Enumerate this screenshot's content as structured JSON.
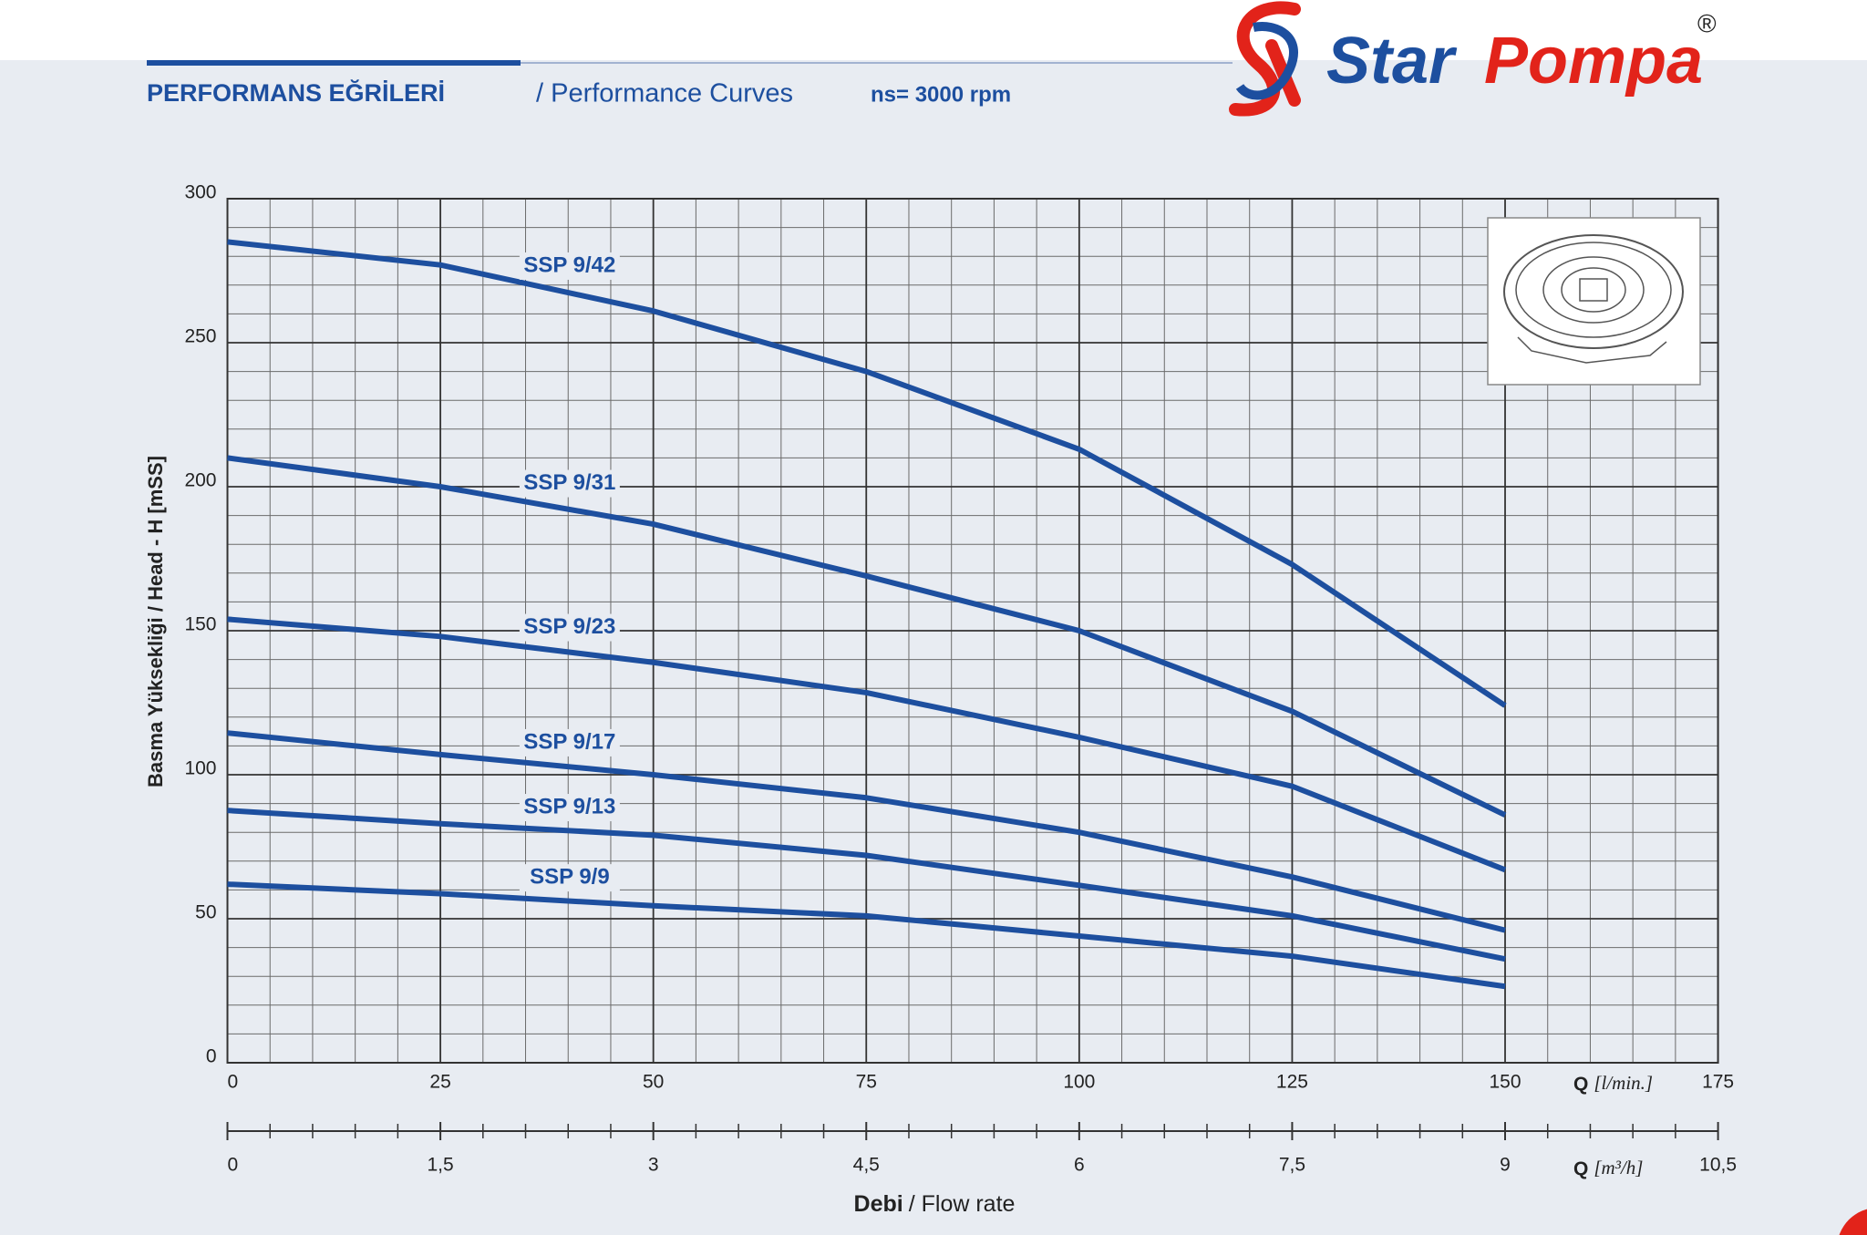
{
  "brand": {
    "word1": "Star",
    "word2": "Pompa",
    "mark": "®"
  },
  "chart_data": {
    "type": "line",
    "title": "PERFORMANS EĞRİLERİ",
    "subtitle": "/ Performance Curves",
    "annotation": "ns= 3000 rpm",
    "x": [
      0,
      25,
      50,
      75,
      100,
      125,
      150
    ],
    "xlim": [
      0,
      175
    ],
    "xticks": [
      0,
      25,
      50,
      75,
      100,
      125,
      150,
      175
    ],
    "x_label_symbol": "Q",
    "x_label_unit": "[l/min.]",
    "x2lim": [
      0,
      10.5
    ],
    "x2ticks": [
      0,
      {
        "value": 1.5,
        "label": "1,5"
      },
      3,
      {
        "value": 4.5,
        "label": "4,5"
      },
      6,
      {
        "value": 7.5,
        "label": "7,5"
      },
      9,
      {
        "value": 10.5,
        "label": "10,5"
      }
    ],
    "x2_label_symbol": "Q",
    "x2_label_unit": "[m³/h]",
    "xlabel_bold": "Debi",
    "xlabel_rest": "/ Flow rate",
    "ylabel": "Basma Yüksekliği / Head - H [mSS]",
    "ylim": [
      0,
      300
    ],
    "yticks": [
      0,
      50,
      100,
      150,
      200,
      250,
      300
    ],
    "grid": true,
    "series": [
      {
        "name": "SSP 9/42",
        "color": "#1d4f9f",
        "values": [
          285,
          277,
          261,
          240,
          213,
          173,
          124
        ]
      },
      {
        "name": "SSP 9/31",
        "color": "#1d4f9f",
        "values": [
          210,
          200,
          187,
          169,
          150,
          122,
          86
        ]
      },
      {
        "name": "SSP 9/23",
        "color": "#1d4f9f",
        "values": [
          154,
          148,
          139,
          128.5,
          113,
          96,
          67
        ]
      },
      {
        "name": "SSP 9/17",
        "color": "#1d4f9f",
        "values": [
          114.5,
          107,
          100,
          92,
          80,
          64.5,
          46
        ]
      },
      {
        "name": "SSP 9/13",
        "color": "#1d4f9f",
        "values": [
          87.6,
          83,
          79,
          72,
          61.6,
          51,
          36
        ]
      },
      {
        "name": "SSP 9/9",
        "color": "#1d4f9f",
        "values": [
          62,
          58.7,
          54.5,
          51,
          44,
          37,
          26.5
        ]
      }
    ]
  }
}
